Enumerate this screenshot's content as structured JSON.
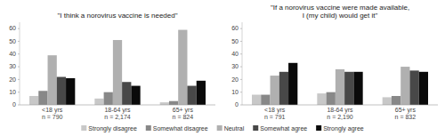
{
  "chart_data": [
    {
      "type": "bar",
      "title": "\"I think a norovirus vaccine is needed\"",
      "categories": [
        "<18 yrs\nn = 790",
        "18-64 yrs\nn = 2,174",
        "65+ yrs\nn = 824"
      ],
      "series": [
        {
          "name": "Strongly disagree",
          "color": "#c8c8c8",
          "values": [
            7,
            5,
            2
          ]
        },
        {
          "name": "Somewhat disagree",
          "color": "#888888",
          "values": [
            11,
            10,
            3
          ]
        },
        {
          "name": "Neutral",
          "color": "#b0b0b0",
          "values": [
            39,
            51,
            59
          ]
        },
        {
          "name": "Somewhat agree",
          "color": "#484848",
          "values": [
            22,
            18,
            15
          ]
        },
        {
          "name": "Strongly agree",
          "color": "#0a0a0a",
          "values": [
            21,
            15,
            19
          ]
        }
      ],
      "ylim": [
        0,
        65
      ],
      "yticks": [
        0,
        10,
        20,
        30,
        40,
        50,
        60
      ],
      "grid": false,
      "legend": "bottom"
    },
    {
      "type": "bar",
      "title": "\"If a norovirus vaccine were made available,\nI (my child) would get it\"",
      "categories": [
        "<18 yrs\nn = 791",
        "18-64 yrs\nn = 2,190",
        "65+ yrs\nn = 832"
      ],
      "series": [
        {
          "name": "Strongly disagree",
          "color": "#c8c8c8",
          "values": [
            8,
            9,
            6
          ]
        },
        {
          "name": "Somewhat disagree",
          "color": "#888888",
          "values": [
            8,
            10,
            7
          ]
        },
        {
          "name": "Neutral",
          "color": "#b0b0b0",
          "values": [
            23,
            28,
            30
          ]
        },
        {
          "name": "Somewhat agree",
          "color": "#484848",
          "values": [
            26,
            26,
            27
          ]
        },
        {
          "name": "Strongly agree",
          "color": "#0a0a0a",
          "values": [
            33,
            26,
            26
          ]
        }
      ],
      "ylim": [
        0,
        65
      ],
      "yticks": [
        0,
        10,
        20,
        30,
        40,
        50,
        60
      ],
      "grid": false
    }
  ]
}
